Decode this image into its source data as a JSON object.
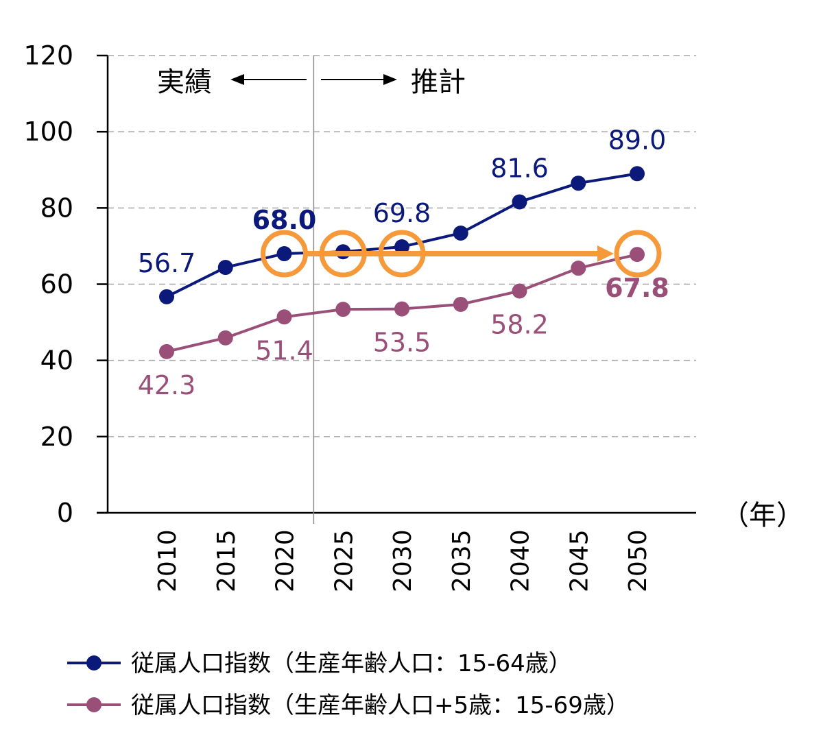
{
  "chart_data": {
    "type": "line",
    "title": "",
    "xlabel": "（年）",
    "ylabel": "",
    "ylim": [
      0,
      120
    ],
    "yticks": [
      0,
      20,
      40,
      60,
      80,
      100,
      120
    ],
    "grid": "horizontal-dashed",
    "categories": [
      "2010",
      "2015",
      "2020",
      "2025",
      "2030",
      "2035",
      "2040",
      "2045",
      "2050"
    ],
    "series": [
      {
        "name": "従属人口指数（生産年齢人口：15-64歳）",
        "color": "#0b1a7a",
        "values": [
          56.7,
          64.4,
          68.0,
          68.5,
          69.8,
          73.4,
          81.6,
          86.5,
          89.0
        ],
        "labels": [
          {
            "index": 0,
            "text": "56.7",
            "position": "above"
          },
          {
            "index": 2,
            "text": "68.0",
            "position": "above"
          },
          {
            "index": 4,
            "text": "69.8",
            "position": "above"
          },
          {
            "index": 6,
            "text": "81.6",
            "position": "above"
          },
          {
            "index": 8,
            "text": "89.0",
            "position": "above"
          }
        ]
      },
      {
        "name": "従属人口指数（生産年齢人口+5歳：15-69歳）",
        "color": "#9a4f78",
        "values": [
          42.3,
          45.9,
          51.4,
          53.4,
          53.5,
          54.7,
          58.2,
          64.2,
          67.8
        ],
        "labels": [
          {
            "index": 0,
            "text": "42.3",
            "position": "below"
          },
          {
            "index": 2,
            "text": "51.4",
            "position": "below"
          },
          {
            "index": 4,
            "text": "53.5",
            "position": "below"
          },
          {
            "index": 6,
            "text": "58.2",
            "position": "below"
          },
          {
            "index": 8,
            "text": "67.8",
            "position": "below"
          }
        ]
      }
    ],
    "divider_after_category": "2020",
    "annotations": {
      "actual_label": "実績",
      "forecast_label": "推計",
      "highlight_color": "#f5993a",
      "highlight_circles": [
        {
          "series": 0,
          "index": 2
        },
        {
          "series": 0,
          "index": 3
        },
        {
          "series": 0,
          "index": 4
        },
        {
          "series": 1,
          "index": 8
        }
      ],
      "highlight_arrow": {
        "from_index": 2,
        "to_index": 8,
        "value": 68.0
      }
    },
    "legend": {
      "placement": "bottom-left"
    }
  }
}
